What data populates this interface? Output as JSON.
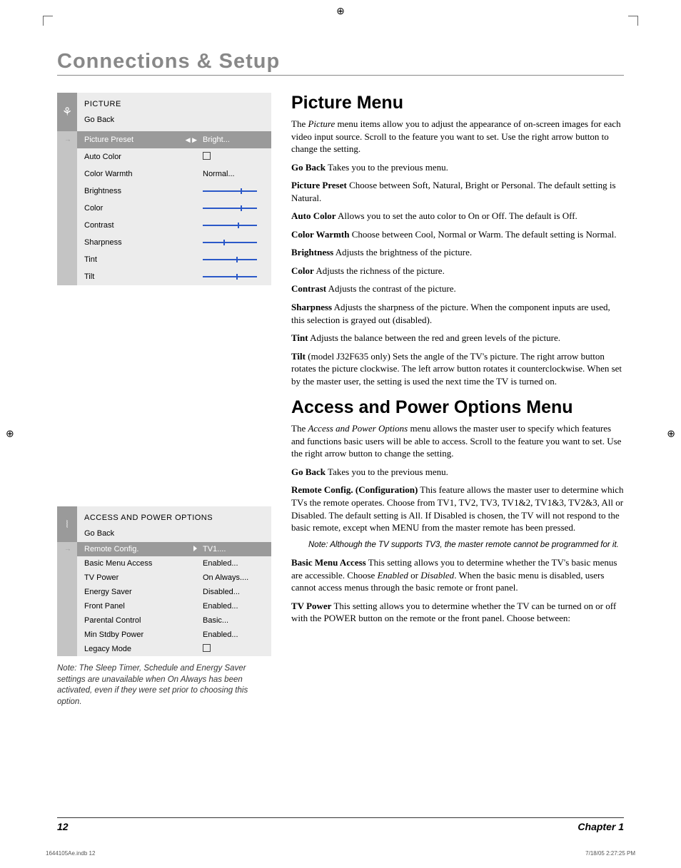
{
  "crop_marks": {
    "color": "#555555"
  },
  "section_title": "Connections & Setup",
  "picture_menu_card": {
    "title": "PICTURE",
    "go_back": "Go Back",
    "selected_row": {
      "label": "Picture Preset",
      "arrows": "◀ ▶",
      "value": "Bright..."
    },
    "rows": [
      {
        "label": "Auto Color",
        "type": "checkbox"
      },
      {
        "label": "Color Warmth",
        "type": "text",
        "value": "Normal..."
      },
      {
        "label": "Brightness",
        "type": "slider",
        "pos": 0.7
      },
      {
        "label": "Color",
        "type": "slider",
        "pos": 0.7
      },
      {
        "label": "Contrast",
        "type": "slider",
        "pos": 0.65
      },
      {
        "label": "Sharpness",
        "type": "slider",
        "pos": 0.38
      },
      {
        "label": "Tint",
        "type": "slider",
        "pos": 0.62
      },
      {
        "label": "Tilt",
        "type": "slider",
        "pos": 0.62
      }
    ],
    "bg": "#ececec",
    "leftbar_sel": "#c4c4c4",
    "leftbar": "#c4c4c4",
    "sel_bg": "#9a9a9a",
    "slider_color": "#2a58c8"
  },
  "access_menu_card": {
    "title": "ACCESS AND POWER OPTIONS",
    "go_back": "Go Back",
    "selected_row": {
      "label": "Remote Config.",
      "arrow": "▶",
      "value": "TV1...."
    },
    "rows": [
      {
        "label": "Basic Menu Access",
        "value": "Enabled..."
      },
      {
        "label": "TV Power",
        "value": "On Always...."
      },
      {
        "label": "Energy Saver",
        "value": "Disabled..."
      },
      {
        "label": "Front Panel",
        "value": "Enabled..."
      },
      {
        "label": "Parental Control",
        "value": "Basic..."
      },
      {
        "label": "Min Stdby Power",
        "value": "Enabled..."
      },
      {
        "label": "Legacy Mode",
        "type": "checkbox"
      }
    ]
  },
  "left_note": "Note: The Sleep Timer, Schedule and Energy Saver settings are unavailable when On Always has been activated, even if they were set prior to choosing this option.",
  "content": {
    "h_picture": "Picture Menu",
    "p_intro": "The Picture menu items allow you to adjust the appearance of on-screen images for each video input source. Scroll to the feature you want to set. Use the right arrow button to change the setting.",
    "p_intro_italic_word": "Picture",
    "items": {
      "goback_b": "Go Back",
      "goback_t": "    Takes you to the previous menu.",
      "pp_b": "Picture Preset",
      "pp_t": "    Choose between Soft, Natural, Bright or Personal. The default setting is Natural.",
      "ac_b": "Auto Color",
      "ac_t": "     Allows you to set the auto color to On or Off. The default is Off.",
      "cw_b": "Color Warmth",
      "cw_t": "    Choose between Cool, Normal or Warm. The default setting is Normal.",
      "br_b": "Brightness",
      "br_t": "    Adjusts the brightness of the picture.",
      "co_b": "Color",
      "co_t": "    Adjusts the richness of the picture.",
      "ct_b": "Contrast",
      "ct_t": "    Adjusts the contrast of the picture.",
      "sh_b": "Sharpness",
      "sh_t": "    Adjusts the sharpness of the picture. When the component inputs are used, this selection is grayed out (disabled).",
      "ti_b": "Tint",
      "ti_t": "     Adjusts the balance between the red and green levels of the picture.",
      "tl_b": "Tilt",
      "tl_t": " (model J32F635 only)    Sets the angle of the TV's picture. The right arrow button rotates the picture clockwise. The left arrow button rotates it counterclockwise. When set by the master user, the setting is used the next time the TV is turned on."
    },
    "h_access": "Access and Power Options Menu",
    "a_intro": "The Access and Power Options menu allows the master user to specify which features and functions basic users will be able to access. Scroll to the feature you want to set. Use the right arrow button to change the setting.",
    "a_intro_italic": "Access and Power Options",
    "a_items": {
      "gb_b": "Go Back",
      "gb_t": "    Takes you to the previous menu.",
      "rc_b": "Remote Config. (Configuration)",
      "rc_t": "    This feature allows the master user to determine which TVs the remote operates. Choose from TV1, TV2, TV3, TV1&2, TV1&3, TV2&3, All or Disabled. The default setting is All. If Disabled is chosen, the TV will not respond to the basic remote, except when MENU from the master remote has been pressed.",
      "rc_note": "Note: Although the TV supports TV3, the master remote cannot be programmed for it.",
      "bma_b": "Basic Menu Access",
      "bma_t": "     This setting allows you to determine whether the TV's basic menus are accessible. Choose Enabled or Disabled. When the basic menu is disabled, users cannot access menus through the basic remote or front panel.",
      "bma_i1": "Enabled",
      "bma_i2": "Disabled",
      "tvp_b": "TV Power",
      "tvp_t": "    This setting allows you to determine whether the TV can be turned on or off with the POWER button on the remote or the front panel. Choose between:"
    }
  },
  "footer": {
    "page": "12",
    "chapter": "Chapter 1"
  },
  "print": {
    "left": "1644105Ae.indb   12",
    "right": "7/18/05   2:27:25 PM"
  }
}
